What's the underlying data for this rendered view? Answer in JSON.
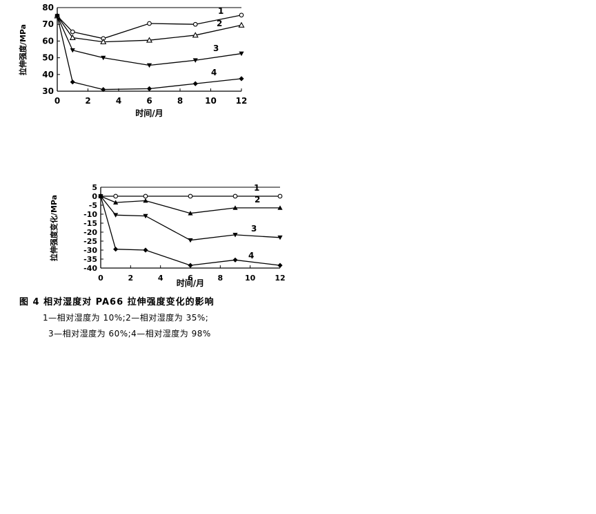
{
  "chart_data": [
    {
      "type": "line",
      "ylabel": "拉伸强度/MPa",
      "xlabel": "时间/月",
      "xlim": [
        0,
        12
      ],
      "ylim": [
        30,
        80
      ],
      "xticks": [
        "0",
        "2",
        "4",
        "6",
        "8",
        "10",
        "12"
      ],
      "yticks": [
        "30",
        "40",
        "50",
        "60",
        "70",
        "80"
      ],
      "x": [
        0,
        1,
        3,
        6,
        9,
        12
      ],
      "series": [
        {
          "name": "1",
          "marker": "open-circle",
          "values": [
            75,
            65.5,
            61.5,
            70.5,
            70,
            75.5
          ]
        },
        {
          "name": "2",
          "marker": "open-triangle",
          "values": [
            75,
            62,
            59.5,
            60.5,
            63.5,
            69.5
          ]
        },
        {
          "name": "3",
          "marker": "filled-triangle-down",
          "values": [
            75,
            54.5,
            50,
            45.5,
            48.5,
            52.5
          ]
        },
        {
          "name": "4",
          "marker": "filled-diamond",
          "values": [
            75,
            35.5,
            31,
            31.5,
            34.5,
            37.5
          ]
        }
      ]
    },
    {
      "type": "line",
      "ylabel": "拉伸强度变化/MPa",
      "xlabel": "时间/月",
      "xlim": [
        0,
        12
      ],
      "ylim": [
        -40,
        5
      ],
      "xticks": [
        "0",
        "2",
        "4",
        "6",
        "8",
        "10",
        "12"
      ],
      "yticks": [
        "5",
        "0",
        "-5",
        "-10",
        "-15",
        "-20",
        "-25",
        "-30",
        "-35",
        "-40"
      ],
      "x": [
        0,
        1,
        3,
        6,
        9,
        12
      ],
      "series": [
        {
          "name": "1",
          "marker": "open-circle",
          "values": [
            0,
            0,
            0,
            0,
            0,
            0
          ]
        },
        {
          "name": "2",
          "marker": "filled-triangle",
          "values": [
            0,
            -3.5,
            -2.5,
            -9.5,
            -6.5,
            -6.5
          ]
        },
        {
          "name": "3",
          "marker": "filled-triangle-down",
          "values": [
            0,
            -10.5,
            -11,
            -24.5,
            -21.5,
            -23
          ]
        },
        {
          "name": "4",
          "marker": "filled-diamond",
          "values": [
            0,
            -29.5,
            -30,
            -38.5,
            -35.5,
            -38.5
          ]
        }
      ]
    }
  ],
  "caption": {
    "title": "图 4   相对湿度对 PA66 拉伸强度变化的影响",
    "line1": "1—相对湿度为 10%;2—相对湿度为 35%;",
    "line2": "3—相对湿度为 60%;4—相对湿度为 98%"
  }
}
